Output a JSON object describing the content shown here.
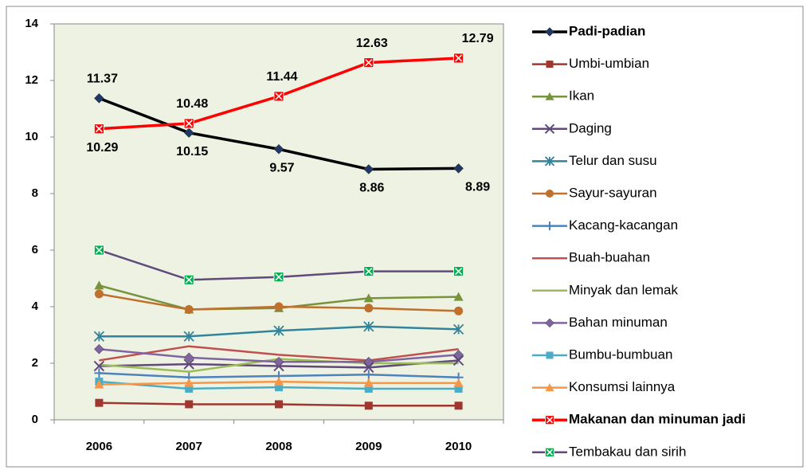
{
  "chart_data": {
    "type": "line",
    "categories": [
      "2006",
      "2007",
      "2008",
      "2009",
      "2010"
    ],
    "ylim": [
      0,
      14
    ],
    "yticks": [
      0,
      2,
      4,
      6,
      8,
      10,
      12,
      14
    ],
    "series": [
      {
        "name": "Padi-padian",
        "color": "#000000",
        "marker": "diamond",
        "marker_color": "#1f3864",
        "line_width": 3.5,
        "data_labels": true,
        "values": [
          11.37,
          10.15,
          9.57,
          8.86,
          8.89
        ]
      },
      {
        "name": "Umbi-umbian",
        "color": "#a0372f",
        "marker": "square",
        "marker_color": "#a0372f",
        "line_width": 2.5,
        "values": [
          0.6,
          0.55,
          0.55,
          0.5,
          0.5
        ]
      },
      {
        "name": "Ikan",
        "color": "#77933c",
        "marker": "triangle",
        "marker_color": "#77933c",
        "line_width": 2.5,
        "values": [
          4.75,
          3.9,
          3.95,
          4.3,
          4.35
        ]
      },
      {
        "name": "Daging",
        "color": "#604a7b",
        "marker": "x",
        "marker_color": "#604a7b",
        "line_width": 2.5,
        "values": [
          1.9,
          1.97,
          1.9,
          1.85,
          2.1
        ]
      },
      {
        "name": "Telur dan susu",
        "color": "#31849b",
        "marker": "asterisk",
        "marker_color": "#31849b",
        "line_width": 2.5,
        "values": [
          2.95,
          2.95,
          3.15,
          3.3,
          3.2
        ]
      },
      {
        "name": "Sayur-sayuran",
        "color": "#c0702d",
        "marker": "circle",
        "marker_color": "#c0702d",
        "line_width": 2.5,
        "values": [
          4.45,
          3.9,
          4.0,
          3.95,
          3.85
        ]
      },
      {
        "name": "Kacang-kacangan",
        "color": "#4f81bd",
        "marker": "plus",
        "marker_color": "#4f81bd",
        "line_width": 2.5,
        "values": [
          1.65,
          1.5,
          1.55,
          1.6,
          1.5
        ]
      },
      {
        "name": "Buah-buahan",
        "color": "#c0504d",
        "marker": "none",
        "marker_color": "#c0504d",
        "line_width": 2.5,
        "values": [
          2.1,
          2.6,
          2.3,
          2.1,
          2.5
        ]
      },
      {
        "name": "Minyak dan lemak",
        "color": "#9bbb59",
        "marker": "none",
        "marker_color": "#9bbb59",
        "line_width": 2.5,
        "values": [
          1.95,
          1.7,
          2.15,
          2.0,
          2.0
        ]
      },
      {
        "name": "Bahan minuman",
        "color": "#8064a2",
        "marker": "diamond",
        "marker_color": "#8064a2",
        "line_width": 2.5,
        "values": [
          2.5,
          2.2,
          2.05,
          2.05,
          2.3
        ]
      },
      {
        "name": "Bumbu-bumbuan",
        "color": "#4bacc6",
        "marker": "square",
        "marker_color": "#4bacc6",
        "line_width": 2.5,
        "values": [
          1.35,
          1.1,
          1.15,
          1.1,
          1.1
        ]
      },
      {
        "name": "Konsumsi lainnya",
        "color": "#f79646",
        "marker": "triangle",
        "marker_color": "#f79646",
        "line_width": 2.5,
        "values": [
          1.25,
          1.3,
          1.35,
          1.3,
          1.3
        ]
      },
      {
        "name": "Makanan dan minuman jadi",
        "color": "#ff0000",
        "marker": "square-x",
        "marker_color": "#ff0000",
        "line_width": 3.5,
        "data_labels": true,
        "values": [
          10.29,
          10.48,
          11.44,
          12.63,
          12.79
        ]
      },
      {
        "name": "Tembakau dan sirih",
        "color": "#604a7b",
        "marker": "square-x",
        "marker_color": "#00b050",
        "line_width": 2.5,
        "values": [
          6.0,
          4.95,
          5.05,
          5.25,
          5.25
        ]
      }
    ]
  }
}
